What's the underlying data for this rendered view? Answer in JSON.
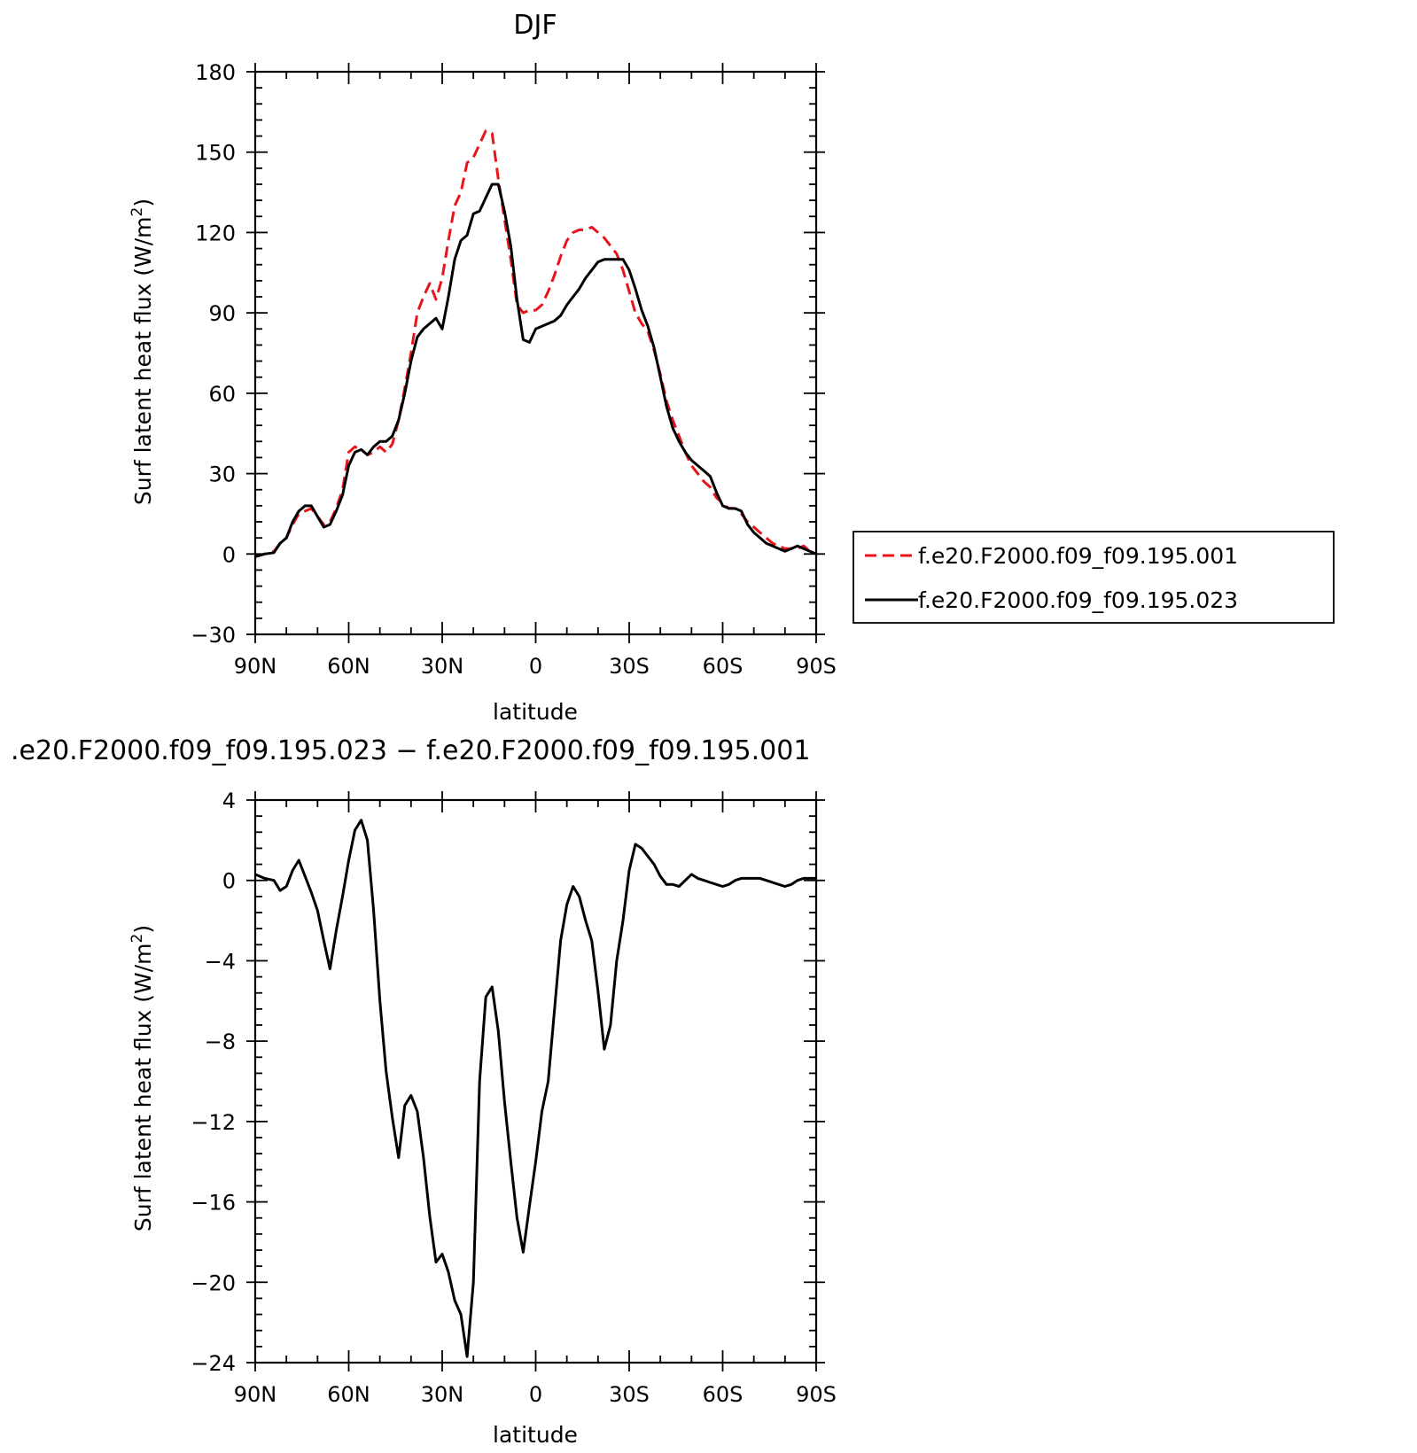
{
  "chart_data": [
    {
      "type": "line",
      "title": "DJF",
      "xlabel": "latitude",
      "ylabel": "Surf latent heat flux (W/m",
      "ylabel_sup": "2",
      "ylabel_end": ")",
      "xlim": [
        90,
        -90
      ],
      "ylim": [
        -30,
        180
      ],
      "xticks": [
        90,
        60,
        30,
        0,
        -30,
        -60,
        -90
      ],
      "xtick_labels": [
        "90N",
        "60N",
        "30N",
        "0",
        "30S",
        "60S",
        "90S"
      ],
      "yticks": [
        -30,
        0,
        30,
        60,
        90,
        120,
        150,
        180
      ],
      "ytick_labels": [
        "−30",
        "0",
        "30",
        "60",
        "90",
        "120",
        "150",
        "180"
      ],
      "legend_position": "right",
      "series": [
        {
          "name": "f.e20.F2000.f09_f09.195.001",
          "color": "#e8141b",
          "style": "dashed",
          "x": [
            90,
            87,
            84,
            82,
            80,
            78,
            76,
            74,
            72,
            70,
            68,
            66,
            64,
            62,
            60,
            58,
            56,
            54,
            52,
            50,
            48,
            46,
            44,
            42,
            40,
            38,
            36,
            34,
            32,
            30,
            28,
            26,
            24,
            22,
            20,
            18,
            16,
            14,
            12,
            10,
            8,
            6,
            4,
            2,
            0,
            -2,
            -4,
            -6,
            -8,
            -10,
            -12,
            -14,
            -16,
            -18,
            -20,
            -22,
            -24,
            -26,
            -28,
            -30,
            -32,
            -34,
            -36,
            -38,
            -40,
            -42,
            -44,
            -46,
            -48,
            -50,
            -52,
            -54,
            -56,
            -58,
            -60,
            -62,
            -64,
            -66,
            -68,
            -70,
            -72,
            -74,
            -76,
            -78,
            -80,
            -82,
            -84,
            -86,
            -88,
            -90
          ],
          "y": [
            -1,
            0,
            1,
            4,
            6,
            11,
            15,
            16,
            17,
            14,
            11,
            12,
            17,
            24,
            38,
            40,
            39,
            37,
            38,
            40,
            38,
            41,
            50,
            62,
            75,
            90,
            96,
            101,
            95,
            103,
            117,
            130,
            135,
            146,
            148,
            153,
            158,
            157,
            140,
            125,
            110,
            93,
            90,
            91,
            91,
            93,
            98,
            104,
            111,
            117,
            120,
            121,
            121,
            122,
            120,
            118,
            115,
            112,
            106,
            98,
            90,
            86,
            83,
            76,
            67,
            57,
            50,
            44,
            38,
            33,
            30,
            27,
            25,
            21,
            19,
            17,
            17,
            15,
            12,
            10,
            8,
            6,
            4,
            3,
            2,
            2,
            2,
            3,
            1,
            0
          ]
        },
        {
          "name": "f.e20.F2000.f09_f09.195.023",
          "color": "#000000",
          "style": "solid",
          "x": [
            90,
            87,
            84,
            82,
            80,
            78,
            76,
            74,
            72,
            70,
            68,
            66,
            64,
            62,
            60,
            58,
            56,
            54,
            52,
            50,
            48,
            46,
            44,
            42,
            40,
            38,
            36,
            34,
            32,
            30,
            28,
            26,
            24,
            22,
            20,
            18,
            16,
            14,
            12,
            10,
            8,
            6,
            4,
            2,
            0,
            -2,
            -4,
            -6,
            -8,
            -10,
            -12,
            -14,
            -16,
            -18,
            -20,
            -22,
            -24,
            -26,
            -28,
            -30,
            -32,
            -34,
            -36,
            -38,
            -40,
            -42,
            -44,
            -46,
            -48,
            -50,
            -52,
            -54,
            -56,
            -58,
            -60,
            -62,
            -64,
            -66,
            -68,
            -70,
            -72,
            -74,
            -76,
            -78,
            -80,
            -82,
            -84,
            -86,
            -88,
            -90
          ],
          "y": [
            -1,
            0,
            0.5,
            4,
            6,
            12,
            16,
            18,
            18,
            14,
            10,
            11,
            16,
            22,
            33,
            38,
            39,
            37,
            40,
            42,
            42,
            44,
            50,
            60,
            72,
            81,
            84,
            86,
            88,
            84,
            96,
            110,
            117,
            119,
            127,
            128,
            133,
            138,
            138,
            128,
            115,
            95,
            80,
            79,
            84,
            85,
            86,
            87,
            89,
            93,
            96,
            99,
            103,
            106,
            109,
            110,
            110,
            110,
            110,
            106,
            99,
            91,
            85,
            77,
            66,
            55,
            47,
            42,
            38,
            35,
            33,
            31,
            29,
            23,
            18,
            17,
            17,
            16,
            11,
            8,
            6,
            4,
            3,
            2,
            1,
            2,
            3,
            2,
            1,
            0
          ]
        }
      ]
    },
    {
      "type": "line",
      "title": ".e20.F2000.f09_f09.195.023 − f.e20.F2000.f09_f09.195.001",
      "xlabel": "latitude",
      "ylabel": "Surf latent heat flux (W/m",
      "ylabel_sup": "2",
      "ylabel_end": ")",
      "xlim": [
        90,
        -90
      ],
      "ylim": [
        -24,
        4
      ],
      "xticks": [
        90,
        60,
        30,
        0,
        -30,
        -60,
        -90
      ],
      "xtick_labels": [
        "90N",
        "60N",
        "30N",
        "0",
        "30S",
        "60S",
        "90S"
      ],
      "yticks": [
        -24,
        -20,
        -16,
        -12,
        -8,
        -4,
        0,
        4
      ],
      "ytick_labels": [
        "−24",
        "−20",
        "−16",
        "−12",
        "−8",
        "−4",
        "0",
        "4"
      ],
      "series": [
        {
          "color": "#000000",
          "style": "solid",
          "x": [
            90,
            87,
            84,
            82,
            80,
            78,
            76,
            74,
            72,
            70,
            68,
            66,
            64,
            62,
            60,
            58,
            56,
            54,
            52,
            50,
            48,
            46,
            44,
            42,
            40,
            38,
            36,
            34,
            32,
            30,
            28,
            26,
            24,
            22,
            20,
            18,
            16,
            14,
            12,
            10,
            8,
            6,
            4,
            2,
            0,
            -2,
            -4,
            -6,
            -8,
            -10,
            -12,
            -14,
            -16,
            -18,
            -20,
            -22,
            -24,
            -26,
            -28,
            -30,
            -32,
            -34,
            -36,
            -38,
            -40,
            -42,
            -44,
            -46,
            -48,
            -50,
            -52,
            -54,
            -56,
            -58,
            -60,
            -62,
            -64,
            -66,
            -68,
            -70,
            -72,
            -74,
            -76,
            -78,
            -80,
            -82,
            -84,
            -86,
            -88,
            -90
          ],
          "y": [
            0.3,
            0.1,
            0,
            -0.5,
            -0.3,
            0.5,
            1,
            0.2,
            -0.6,
            -1.5,
            -3,
            -4.4,
            -2.5,
            -0.8,
            1,
            2.5,
            3,
            2,
            -1.5,
            -6,
            -9.5,
            -11.8,
            -13.8,
            -11.2,
            -10.7,
            -11.5,
            -13.8,
            -16.7,
            -19,
            -18.6,
            -19.5,
            -20.9,
            -21.6,
            -23.7,
            -20,
            -10,
            -5.8,
            -5.3,
            -7.5,
            -11,
            -14,
            -16.8,
            -18.5,
            -16.2,
            -14,
            -11.5,
            -10,
            -6.5,
            -3,
            -1.2,
            -0.3,
            -0.8,
            -2,
            -3,
            -5.5,
            -8.4,
            -7.2,
            -4,
            -2,
            0.5,
            1.8,
            1.6,
            1.2,
            0.8,
            0.2,
            -0.2,
            -0.2,
            -0.3,
            0,
            0.3,
            0.1,
            0,
            -0.1,
            -0.2,
            -0.3,
            -0.2,
            0,
            0.1,
            0.1,
            0.1,
            0.1,
            0,
            -0.1,
            -0.2,
            -0.3,
            -0.2,
            0,
            0.1,
            0.1,
            0.1
          ]
        }
      ]
    }
  ]
}
